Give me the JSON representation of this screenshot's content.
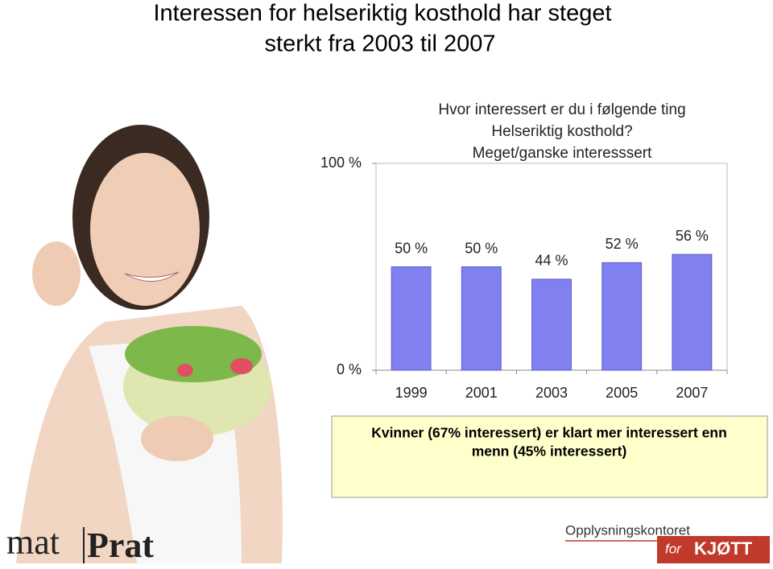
{
  "slide_title": [
    "Interessen for helseriktig kosthold har steget",
    "sterkt fra 2003 til 2007"
  ],
  "chart_data": {
    "type": "bar",
    "title": [
      "Hvor interessert er du i følgende ting",
      "Helseriktig kosthold?",
      "Meget/ganske interesssert"
    ],
    "categories": [
      "1999",
      "2001",
      "2003",
      "2005",
      "2007"
    ],
    "values": [
      50,
      50,
      44,
      52,
      56
    ],
    "value_labels": [
      "50 %",
      "50 %",
      "44 %",
      "52 %",
      "56 %"
    ],
    "color": "#8080f0",
    "ylim": [
      0,
      100
    ],
    "yticks": [
      {
        "value": 0,
        "label": "0 %"
      },
      {
        "value": 100,
        "label": "100 %"
      }
    ]
  },
  "callout": [
    "Kvinner (67% interessert) er klart mer interessert enn",
    "menn (45% interessert)"
  ],
  "logos": {
    "matprat": [
      "mat",
      "Prat"
    ],
    "kjott": [
      "Opplysningskontoret",
      "for",
      "KJØTT"
    ]
  }
}
